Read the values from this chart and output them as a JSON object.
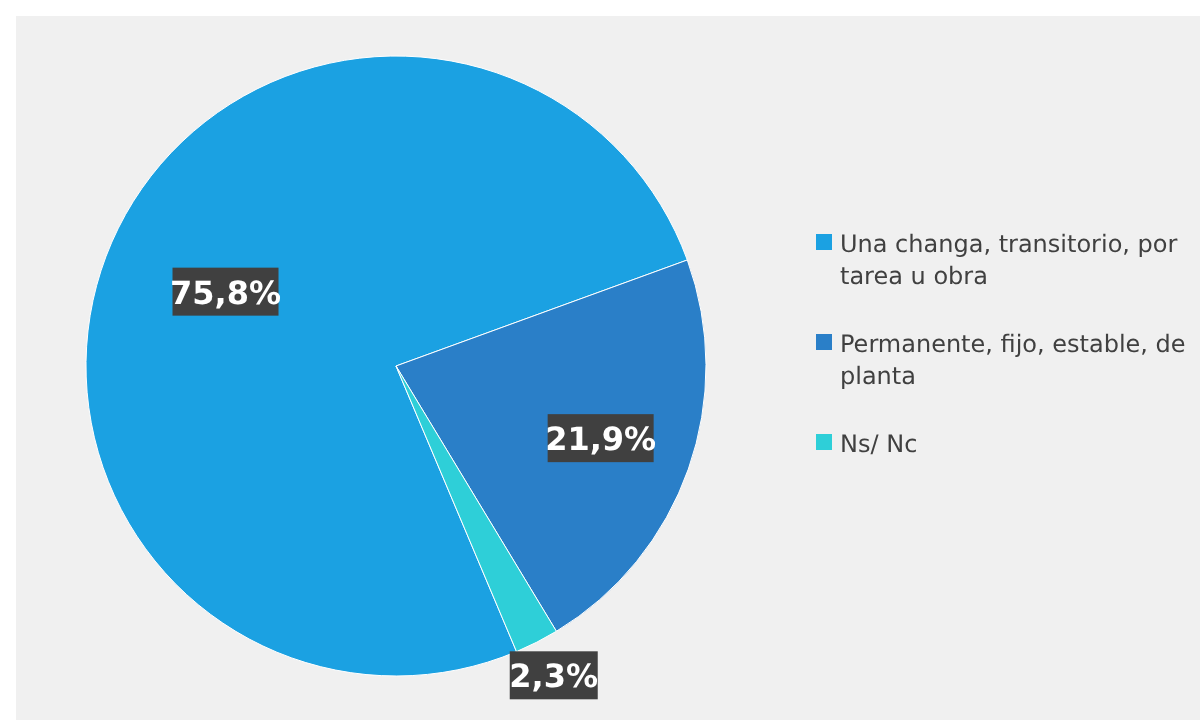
{
  "chart_data": {
    "type": "pie",
    "categories": [
      "Una changa, transitorio, por tarea u obra",
      "Permanente, fijo, estable, de planta",
      "Ns/ Nc"
    ],
    "values": [
      75.8,
      21.9,
      2.3
    ],
    "colors": [
      "#1ba1e2",
      "#2a7fc8",
      "#2ecfd8"
    ],
    "value_labels": [
      "75,8%",
      "21,9%",
      "2,3%"
    ],
    "legend": "right"
  }
}
